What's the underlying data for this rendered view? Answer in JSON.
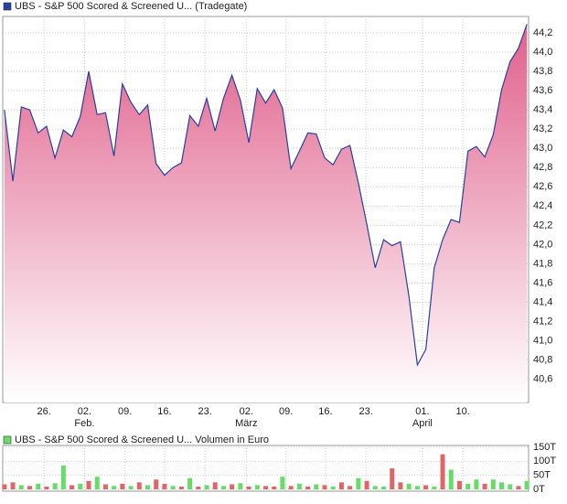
{
  "chart_data": [
    {
      "type": "area",
      "series": [
        {
          "name": "UBS - S&P 500 Scored & Screened U... (Tradegate)",
          "color": "#2b3f9e",
          "values": [
            43.4,
            42.66,
            43.43,
            43.4,
            43.16,
            43.23,
            42.9,
            43.19,
            43.12,
            43.33,
            43.8,
            43.35,
            43.37,
            42.92,
            43.67,
            43.48,
            43.35,
            43.45,
            42.84,
            42.72,
            42.8,
            42.85,
            43.34,
            43.23,
            43.52,
            43.18,
            43.52,
            43.76,
            43.5,
            43.06,
            43.62,
            43.47,
            43.61,
            43.42,
            42.79,
            42.97,
            43.16,
            43.15,
            42.9,
            42.83,
            42.99,
            43.03,
            42.64,
            42.21,
            41.76,
            42.05,
            41.99,
            42.03,
            41.46,
            40.75,
            40.91,
            41.76,
            42.05,
            42.26,
            42.23,
            42.97,
            43.02,
            42.91,
            43.14,
            43.61,
            43.9,
            44.04,
            44.29
          ]
        }
      ],
      "fill_color": "#e0608c",
      "xlim": [
        -0.2,
        62.2
      ],
      "xticks": [
        {
          "value": 4.7,
          "label": "26."
        },
        {
          "value": 9.5,
          "label": "02."
        },
        {
          "value": 14.3,
          "label": "09."
        },
        {
          "value": 19.0,
          "label": "16."
        },
        {
          "value": 23.8,
          "label": "23."
        },
        {
          "value": 28.7,
          "label": "02."
        },
        {
          "value": 33.4,
          "label": "09."
        },
        {
          "value": 38.1,
          "label": "16."
        },
        {
          "value": 42.9,
          "label": "23."
        },
        {
          "value": 49.6,
          "label": "01."
        },
        {
          "value": 54.4,
          "label": "10."
        }
      ],
      "months": [
        {
          "value": 9.5,
          "label": "Feb."
        },
        {
          "value": 28.7,
          "label": "März"
        },
        {
          "value": 49.6,
          "label": "April"
        }
      ],
      "ylim": [
        40.36,
        44.37
      ],
      "yticks": [
        {
          "value": 40.6,
          "label": "40,6"
        },
        {
          "value": 40.8,
          "label": "40,8"
        },
        {
          "value": 41.0,
          "label": "41,0"
        },
        {
          "value": 41.2,
          "label": "41,2"
        },
        {
          "value": 41.4,
          "label": "41,4"
        },
        {
          "value": 41.6,
          "label": "41,6"
        },
        {
          "value": 41.8,
          "label": "41,8"
        },
        {
          "value": 42.0,
          "label": "42,0"
        },
        {
          "value": 42.2,
          "label": "42,2"
        },
        {
          "value": 42.4,
          "label": "42,4"
        },
        {
          "value": 42.6,
          "label": "42,6"
        },
        {
          "value": 42.8,
          "label": "42,8"
        },
        {
          "value": 43.0,
          "label": "43,0"
        },
        {
          "value": 43.2,
          "label": "43,2"
        },
        {
          "value": 43.4,
          "label": "43,4"
        },
        {
          "value": 43.6,
          "label": "43,6"
        },
        {
          "value": 43.8,
          "label": "43,8"
        },
        {
          "value": 44.0,
          "label": "44,0"
        },
        {
          "value": 44.2,
          "label": "44,2"
        }
      ],
      "grid": true
    },
    {
      "type": "bar",
      "series": [
        {
          "name": "UBS - S&P 500 Scored & Screened U... Volumen in Euro",
          "color": "#66dd66",
          "values": [
            18,
            25,
            15,
            12,
            20,
            10,
            22,
            85,
            15,
            20,
            30,
            45,
            18,
            12,
            20,
            12,
            25,
            15,
            35,
            20,
            12,
            10,
            40,
            10,
            15,
            25,
            12,
            18,
            22,
            10,
            15,
            12,
            10,
            45,
            12,
            20,
            10,
            18,
            15,
            10,
            25,
            12,
            40,
            30,
            12,
            10,
            75,
            25,
            20,
            12,
            15,
            10,
            125,
            70,
            30,
            20,
            35,
            20,
            35,
            25,
            18,
            12,
            30
          ],
          "colors": [
            "#e06666",
            "#e06666",
            "#66dd66",
            "#e06666",
            "#66dd66",
            "#e06666",
            "#66dd66",
            "#66dd66",
            "#e06666",
            "#66dd66",
            "#e06666",
            "#66dd66",
            "#e06666",
            "#66dd66",
            "#e06666",
            "#66dd66",
            "#e06666",
            "#66dd66",
            "#e06666",
            "#e06666",
            "#66dd66",
            "#e06666",
            "#66dd66",
            "#e06666",
            "#66dd66",
            "#e06666",
            "#66dd66",
            "#e06666",
            "#66dd66",
            "#e06666",
            "#66dd66",
            "#e06666",
            "#e06666",
            "#66dd66",
            "#e06666",
            "#66dd66",
            "#e06666",
            "#66dd66",
            "#e06666",
            "#66dd66",
            "#e06666",
            "#e06666",
            "#66dd66",
            "#e06666",
            "#66dd66",
            "#66dd66",
            "#e06666",
            "#e06666",
            "#66dd66",
            "#66dd66",
            "#e06666",
            "#66dd66",
            "#e06666",
            "#66dd66",
            "#e06666",
            "#66dd66",
            "#66dd66",
            "#e06666",
            "#66dd66",
            "#66dd66",
            "#66dd66",
            "#e06666",
            "#66dd66"
          ]
        }
      ],
      "xlim": [
        -0.2,
        62.2
      ],
      "ylim": [
        -6.5,
        156.5
      ],
      "yticks": [
        {
          "value": 0,
          "label": "0T"
        },
        {
          "value": 50,
          "label": "50T"
        },
        {
          "value": 100,
          "label": "100T"
        },
        {
          "value": 150,
          "label": "150T"
        }
      ],
      "grid": true
    }
  ]
}
